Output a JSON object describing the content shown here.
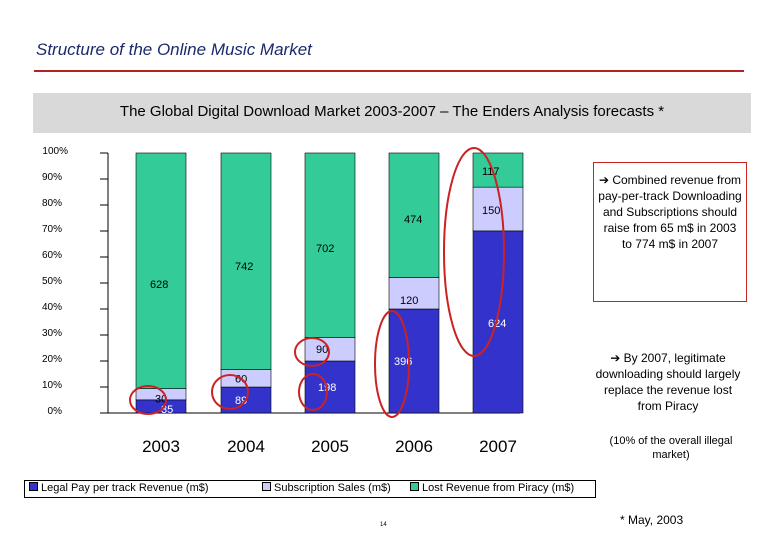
{
  "header": {
    "title": "Structure of the Online Music Market",
    "subtitle": "The Global Digital Download Market 2003-2007 – The Enders Analysis forecasts *"
  },
  "colors": {
    "legal_pay": "#3333cc",
    "subscription": "#ccccff",
    "piracy": "#33cc99",
    "accent_red": "#cc2222"
  },
  "chart_data": {
    "type": "bar",
    "stacked": "percent",
    "categories": [
      "2003",
      "2004",
      "2005",
      "2006",
      "2007"
    ],
    "series": [
      {
        "name": "Legal Pay per track Revenue (m$)",
        "values": [
          35,
          89,
          198,
          396,
          624
        ]
      },
      {
        "name": "Subscription Sales (m$)",
        "values": [
          30,
          60,
          90,
          120,
          150
        ]
      },
      {
        "name": "Lost Revenue from Piracy (m$)",
        "values": [
          628,
          742,
          702,
          474,
          117
        ]
      }
    ],
    "y_tick_labels": [
      "0%",
      "10%",
      "20%",
      "30%",
      "40%",
      "50%",
      "60%",
      "70%",
      "80%",
      "90%",
      "100%"
    ],
    "ylim": [
      0,
      100
    ],
    "legend_position": "bottom",
    "highlighted_labels": [
      "2003: 30",
      "2004: 89",
      "2005: 198"
    ]
  },
  "notes": {
    "note1": "➔ Combined revenue from pay-per-track Downloading and Subscriptions should raise from 65 m$ in 2003 to 774 m$ in 2007",
    "note2": "➔ By 2007, legitimate downloading should largely replace the revenue lost from Piracy",
    "note3": "(10% of the overall illegal market)"
  },
  "footer": {
    "page_number": "14",
    "footnote": "* May, 2003"
  }
}
